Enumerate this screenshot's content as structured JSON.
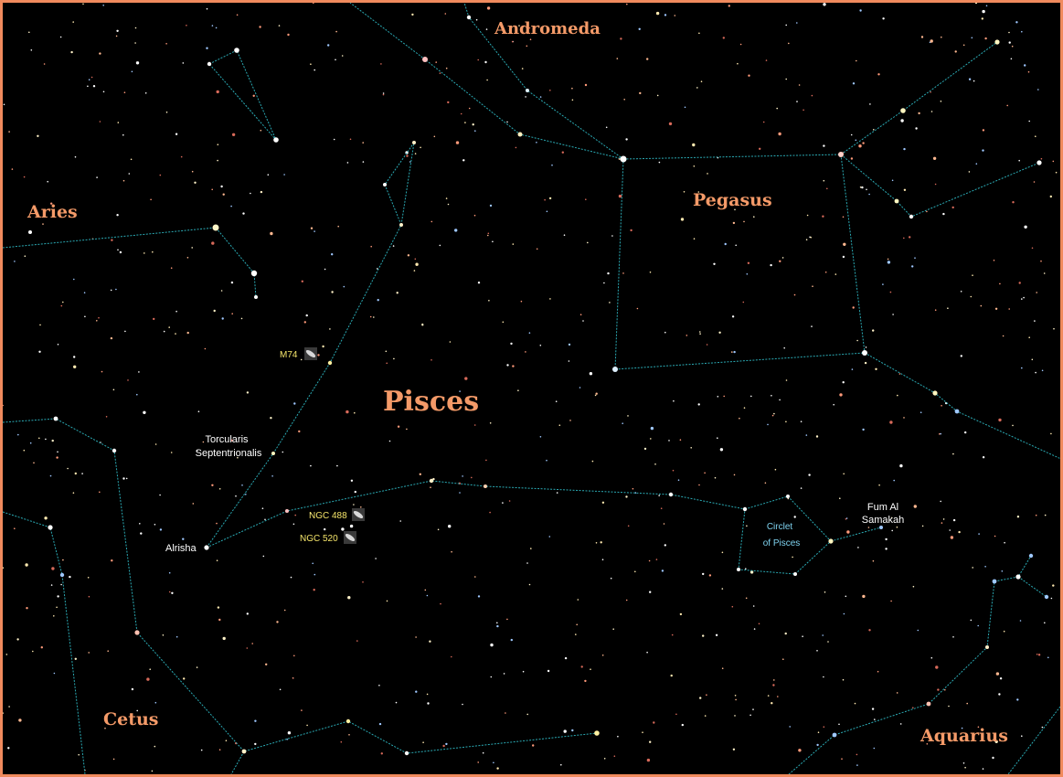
{
  "constellations": {
    "andromeda": "Andromeda",
    "aries": "Aries",
    "pegasus": "Pegasus",
    "pisces": "Pisces",
    "cetus": "Cetus",
    "aquarius": "Aquarius"
  },
  "stars": {
    "alrisha": "Alrisha",
    "torcularis_line1": "Torcularis",
    "torcularis_line2": "Septentrionalis",
    "fum_line1": "Fum Al",
    "fum_line2": "Samakah"
  },
  "deep_sky": {
    "m74": "M74",
    "ngc488": "NGC 488",
    "ngc520": "NGC 520"
  },
  "asterism": {
    "line1": "Circlet",
    "line2": "of Pisces"
  },
  "colors": {
    "border": "#f08a5d",
    "constellation_label": "#f49a68",
    "lines": "#2aa9b3",
    "dso_label": "#f4e46a",
    "asterism_label": "#7fd3f0"
  }
}
